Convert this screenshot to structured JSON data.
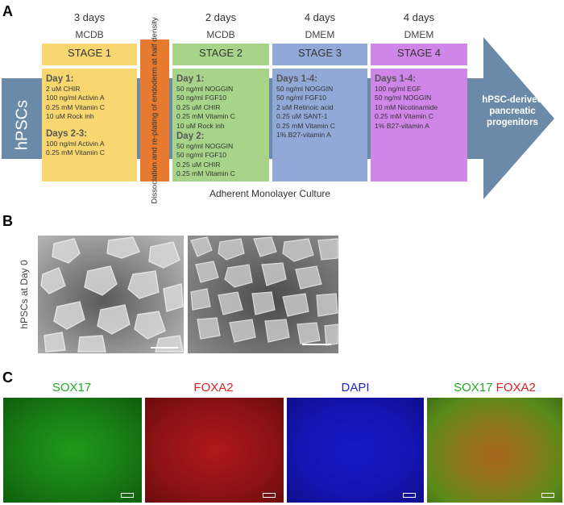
{
  "panels": {
    "a": "A",
    "b": "B",
    "c": "C"
  },
  "protocol": {
    "start_label": "hPSCs",
    "end_label": [
      "hPSC-derived",
      "pancreatic",
      "progenitors"
    ],
    "dissociation_text": "Dissociation and re-plating of endoderm at half density",
    "caption": "Adherent Monolayer Culture",
    "stages": [
      {
        "days": "3 days",
        "medium": "MCDB",
        "title": "STAGE 1",
        "blocks": [
          {
            "head": "Day 1:",
            "lines": [
              "2 uM CHIR",
              "100 ng/ml Activin A",
              "0.25 mM Vitamin C",
              "10 uM Rock inh"
            ]
          },
          {
            "head": "Days 2-3:",
            "lines": [
              "100 ng/ml Activin A",
              "0.25 mM Vitamin C"
            ]
          }
        ]
      },
      {
        "days": "2 days",
        "medium": "MCDB",
        "title": "STAGE 2",
        "blocks": [
          {
            "head": "Day 1:",
            "lines": [
              "50 ng/ml NOGGIN",
              "50 ng/ml FGF10",
              "0.25 uM CHIR",
              "0.25 mM Vitamin C",
              "10 uM Rock inh"
            ]
          },
          {
            "head": "Day 2:",
            "lines": [
              "50 ng/ml NOGGIN",
              "50 ng/ml FGF10",
              "0.25 uM CHIR",
              "0.25 mM Vitamin C"
            ]
          }
        ]
      },
      {
        "days": "4 days",
        "medium": "DMEM",
        "title": "STAGE 3",
        "blocks": [
          {
            "head": "Days 1-4:",
            "lines": [
              "50 ng/ml NOGGIN",
              "50 ng/ml FGF10",
              "2 uM Retinoic acid",
              "0.25 uM SANT-1",
              "0.25 mM Vitamin C",
              "1% B27-vitamin A"
            ]
          }
        ]
      },
      {
        "days": "4 days",
        "medium": "DMEM",
        "title": "STAGE 4",
        "blocks": [
          {
            "head": "Days 1-4:",
            "lines": [
              "100 ng/ml EGF",
              "50 ng/ml NOGGIN",
              "10 mM Nicotinamide",
              "0.25 mM Vitamin C",
              "1% B27-vitamin A"
            ]
          }
        ]
      }
    ]
  },
  "panel_b": {
    "ylabel": "hPSCs at Day 0"
  },
  "panel_c": {
    "stains": [
      {
        "label": "SOX17",
        "color": "#22aa22"
      },
      {
        "label": "FOXA2",
        "color": "#dd2222"
      },
      {
        "label": "DAPI",
        "color": "#2222cc"
      }
    ],
    "merge": [
      {
        "label": "SOX17",
        "color": "#22aa22"
      },
      {
        "label": "FOXA2",
        "color": "#dd2222"
      }
    ]
  }
}
